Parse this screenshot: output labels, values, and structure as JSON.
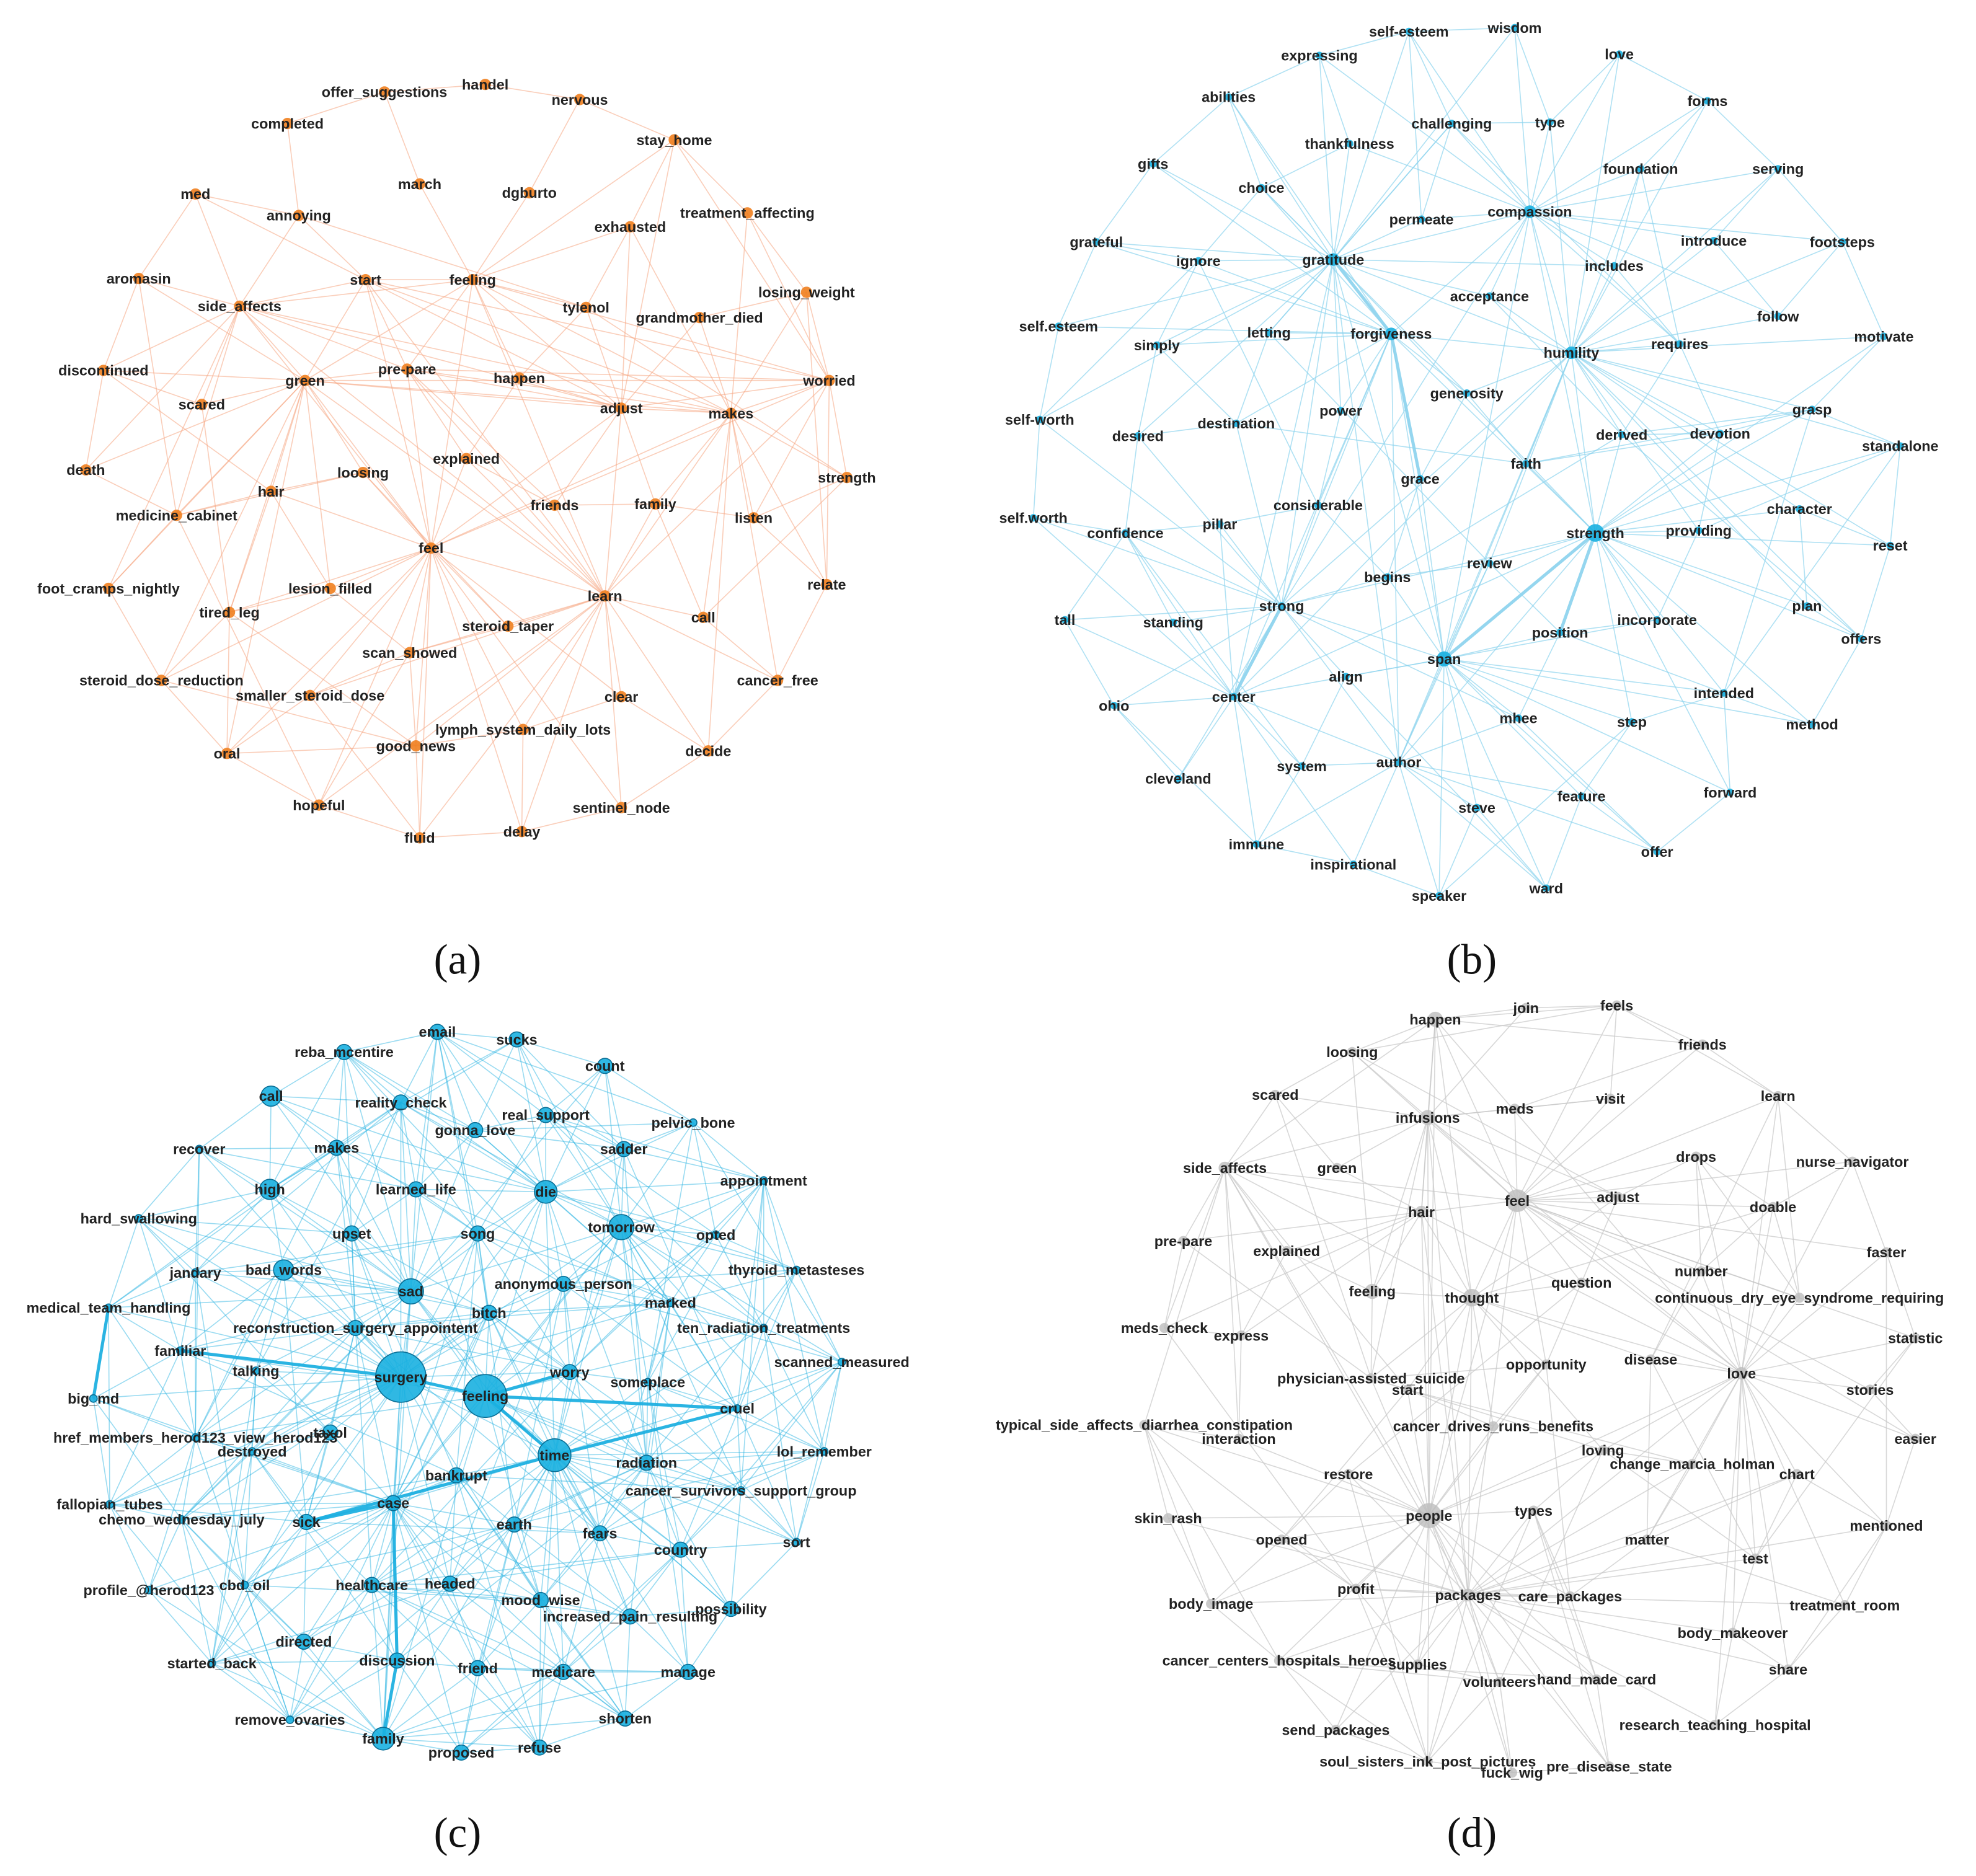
{
  "panels": [
    {
      "label": "(a)",
      "nodes": [
        "offer_suggestions",
        "handel",
        "nervous",
        "completed",
        "stay_home",
        "march",
        "dgburto",
        "med",
        "annoying",
        "exhausted",
        "treatment_affecting",
        "aromasin",
        "start",
        "feeling",
        "losing_weight",
        "side_affects",
        "tylenol",
        "grandmother_died",
        "discontinued",
        "pre-pare",
        "green",
        "happen",
        "worried",
        "scared",
        "adjust",
        "makes",
        "explained",
        "loosing",
        "death",
        "hair",
        "strength",
        "medicine_cabinet",
        "friends",
        "family",
        "listen",
        "feel",
        "foot_cramps_nightly",
        "lesion_filled",
        "learn",
        "relate",
        "tired_leg",
        "steroid_taper",
        "call",
        "scan_showed",
        "steroid_dose_reduction",
        "smaller_steroid_dose",
        "clear",
        "cancer_free",
        "lymph_system_daily_lots",
        "good_news",
        "oral",
        "decide",
        "hopeful",
        "sentinel_node",
        "fluid",
        "delay"
      ]
    },
    {
      "label": "(b)",
      "nodes": [
        "self-esteem",
        "wisdom",
        "love",
        "expressing",
        "abilities",
        "forms",
        "challenging",
        "type",
        "thankfulness",
        "gifts",
        "foundation",
        "serving",
        "choice",
        "compassion",
        "permeate",
        "grateful",
        "introduce",
        "footsteps",
        "gratitude",
        "ignore",
        "includes",
        "acceptance",
        "self.esteem",
        "simply",
        "letting",
        "forgiveness",
        "humility",
        "follow",
        "motivate",
        "requires",
        "generosity",
        "power",
        "grasp",
        "self-worth",
        "desired",
        "destination",
        "derived",
        "devotion",
        "standalone",
        "faith",
        "grace",
        "considerable",
        "self.worth",
        "confidence",
        "pillar",
        "strength",
        "character",
        "providing",
        "reset",
        "review",
        "begins",
        "tall",
        "standing",
        "strong",
        "incorporate",
        "position",
        "plan",
        "offers",
        "span",
        "align",
        "ohio",
        "center",
        "intended",
        "method",
        "mhee",
        "step",
        "author",
        "system",
        "cleveland",
        "feature",
        "forward",
        "steve",
        "immune",
        "offer",
        "inspirational",
        "speaker",
        "ward"
      ]
    },
    {
      "label": "(c)",
      "nodes": [
        "email",
        "sucks",
        "reba_mcentire",
        "count",
        "call",
        "reality_check",
        "pelvic_bone",
        "real_support",
        "gonna_love",
        "recover",
        "makes",
        "sadder",
        "appointment",
        "high",
        "learned_life",
        "die",
        "hard_swallowing",
        "upset",
        "song",
        "tomorrow",
        "opted",
        "jandary",
        "bad_words",
        "thyroid_metasteses",
        "anonymous_person",
        "sad",
        "marked",
        "medical_team_handling",
        "bitch",
        "reconstruction_surgery_appointent",
        "ten_radiation_treatments",
        "familiar",
        "talking",
        "surgery",
        "feeling",
        "worry",
        "scanned_measured",
        "someplace",
        "big_md",
        "cruel",
        "href_members_herod123_view_herod123",
        "taxol",
        "destroyed",
        "time",
        "lol_remember",
        "radiation",
        "bankrupt",
        "cancer_survivors_support_group",
        "fallopian_tubes",
        "case",
        "chemo_wednesday_july",
        "sick",
        "earth",
        "fears",
        "country",
        "sort",
        "healthcare",
        "headed",
        "profile_@herod123",
        "cbd_oil",
        "mood_wise",
        "increased_pain_resulting",
        "possibility",
        "directed",
        "discussion",
        "started_back",
        "friend",
        "medicare",
        "manage",
        "remove_ovaries",
        "shorten",
        "family",
        "proposed",
        "refuse"
      ]
    },
    {
      "label": "(d)",
      "nodes": [
        "happen",
        "join",
        "feels",
        "loosing",
        "friends",
        "scared",
        "infusions",
        "meds",
        "visit",
        "learn",
        "side_affects",
        "green",
        "drops",
        "nurse_navigator",
        "adjust",
        "hair",
        "feel",
        "doable",
        "pre-pare",
        "explained",
        "faster",
        "number",
        "question",
        "feeling",
        "thought",
        "continuous_dry_eye_syndrome_requiring",
        "meds_check",
        "express",
        "statistic",
        "opportunity",
        "disease",
        "love",
        "physician-assisted_suicide",
        "start",
        "stories",
        "typical_side_affects_diarrhea_constipation",
        "cancer_drives_runs_benefits",
        "easier",
        "interaction",
        "loving",
        "change_marcia_holman",
        "chart",
        "restore",
        "types",
        "people",
        "skin_rash",
        "mentioned",
        "opened",
        "matter",
        "test",
        "profit",
        "packages",
        "care_packages",
        "body_image",
        "treatment_room",
        "body_makeover",
        "cancer_centers_hospitals_heroes",
        "supplies",
        "volunteers",
        "hand_made_card",
        "share",
        "research_teaching_hospital",
        "send_packages",
        "soul_sisters_ink_post_pictures",
        "fuck_wig",
        "pre_disease_state"
      ]
    }
  ]
}
